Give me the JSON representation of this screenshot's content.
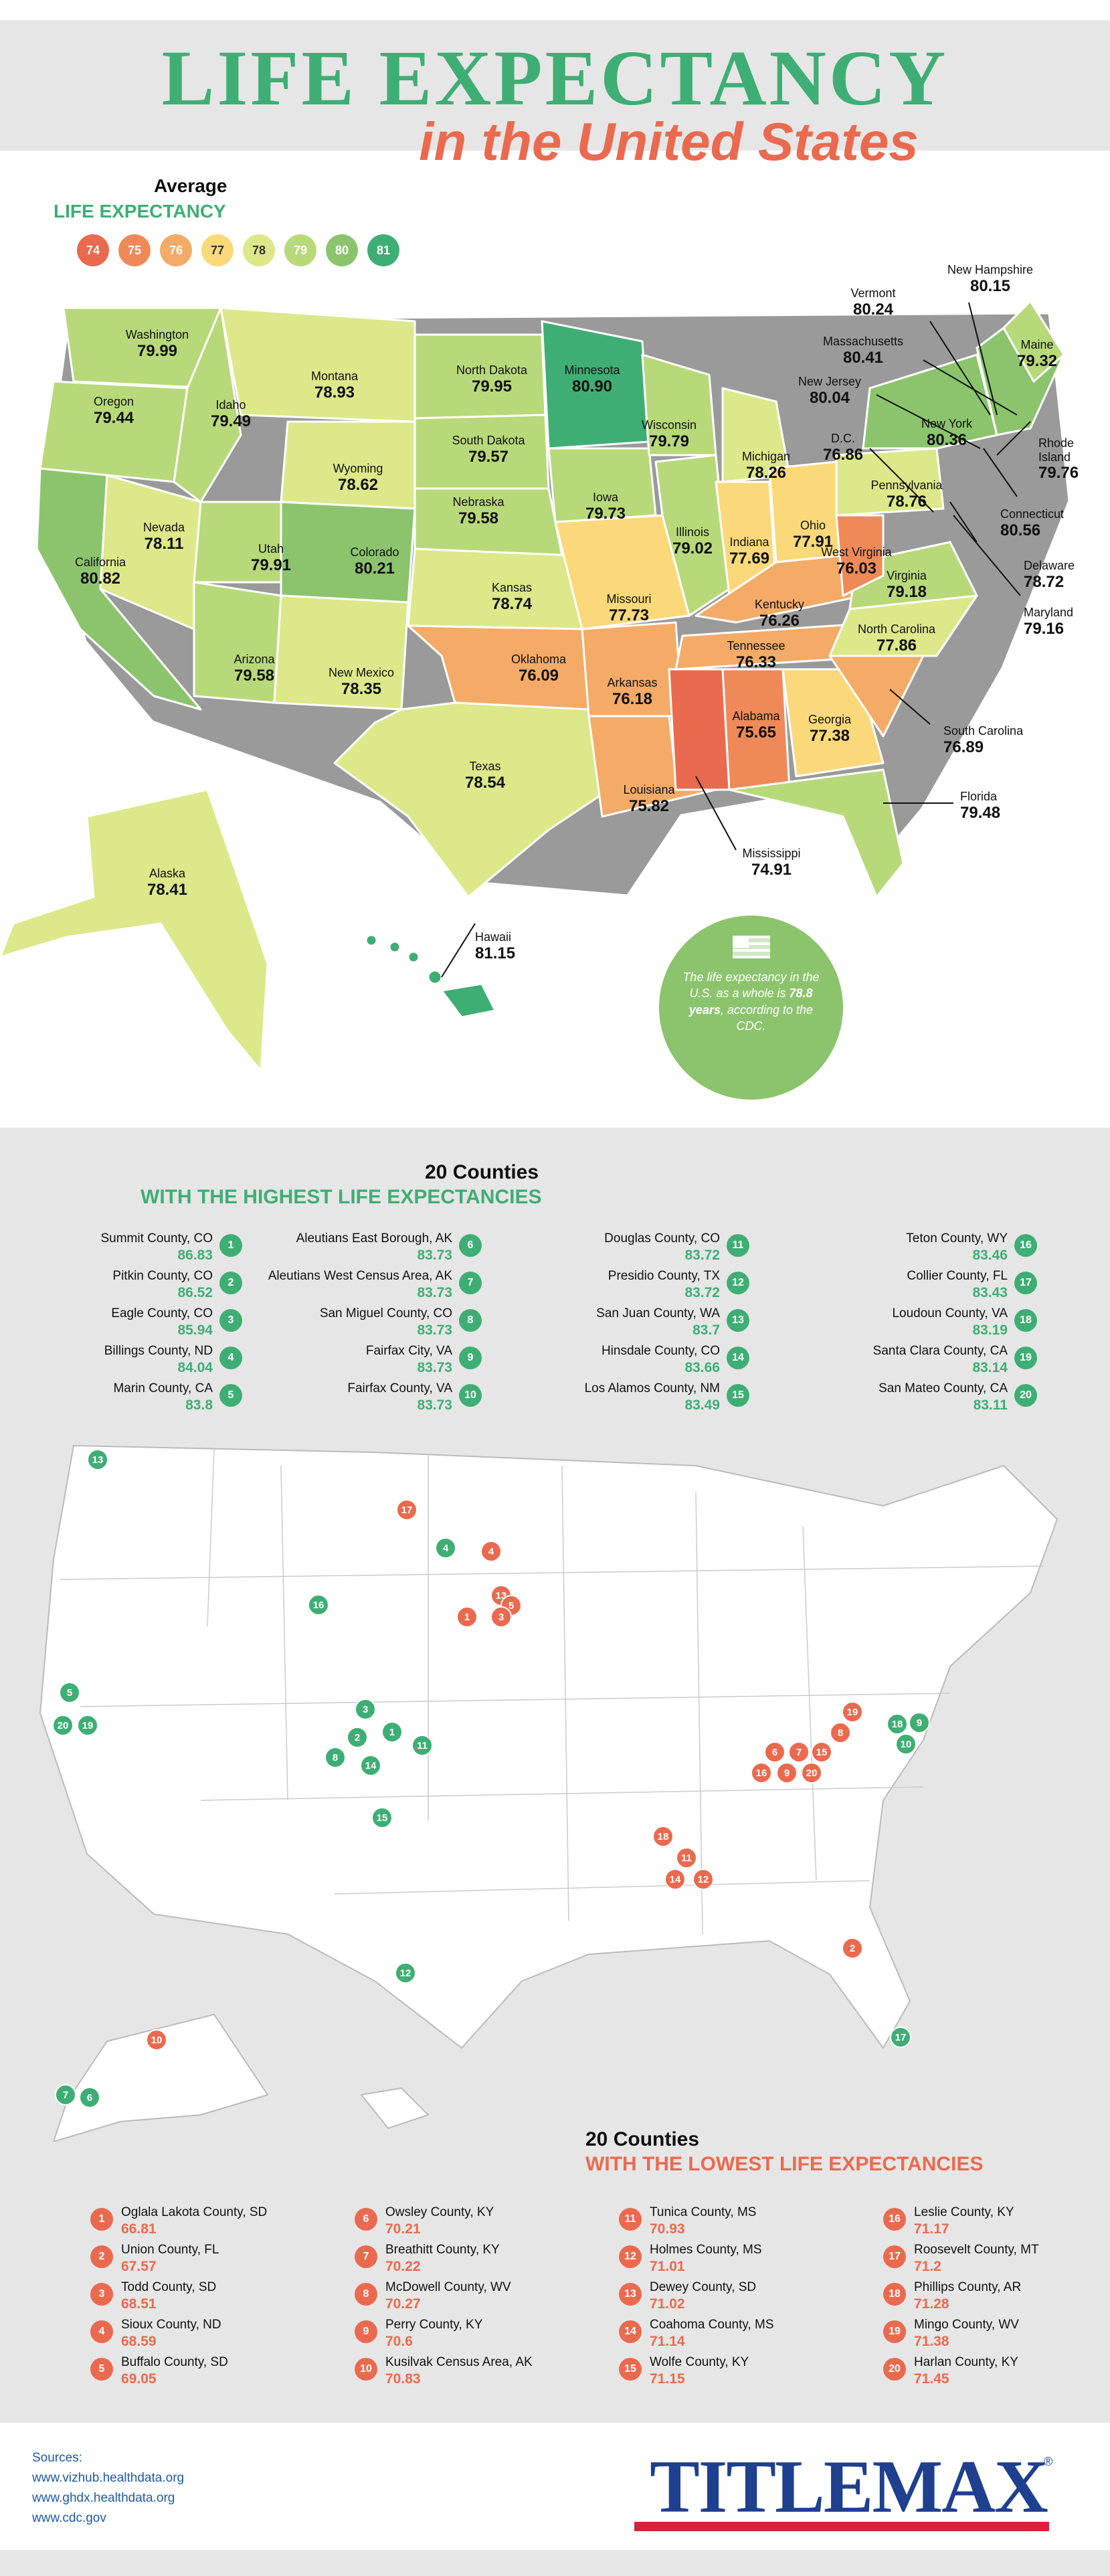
{
  "title": {
    "line1": "LIFE EXPECTANCY",
    "line2": "in the United States"
  },
  "legend": {
    "title_line1": "Average",
    "title_line2": "LIFE EXPECTANCY",
    "items": [
      {
        "label": "74",
        "color": "#ea6a4f"
      },
      {
        "label": "75",
        "color": "#ef8a58"
      },
      {
        "label": "76",
        "color": "#f4ab67"
      },
      {
        "label": "77",
        "color": "#fbd97a"
      },
      {
        "label": "78",
        "color": "#dde88a"
      },
      {
        "label": "79",
        "color": "#b8d97a"
      },
      {
        "label": "80",
        "color": "#8cc46e"
      },
      {
        "label": "81",
        "color": "#3fae74"
      }
    ]
  },
  "states": [
    {
      "name": "Washington",
      "value": "79.99"
    },
    {
      "name": "Oregon",
      "value": "79.44"
    },
    {
      "name": "California",
      "value": "80.82"
    },
    {
      "name": "Idaho",
      "value": "79.49"
    },
    {
      "name": "Nevada",
      "value": "78.11"
    },
    {
      "name": "Montana",
      "value": "78.93"
    },
    {
      "name": "Wyoming",
      "value": "78.62"
    },
    {
      "name": "Utah",
      "value": "79.91"
    },
    {
      "name": "Colorado",
      "value": "80.21"
    },
    {
      "name": "Arizona",
      "value": "79.58"
    },
    {
      "name": "New Mexico",
      "value": "78.35"
    },
    {
      "name": "North Dakota",
      "value": "79.95"
    },
    {
      "name": "South Dakota",
      "value": "79.57"
    },
    {
      "name": "Nebraska",
      "value": "79.58"
    },
    {
      "name": "Kansas",
      "value": "78.74"
    },
    {
      "name": "Oklahoma",
      "value": "76.09"
    },
    {
      "name": "Texas",
      "value": "78.54"
    },
    {
      "name": "Minnesota",
      "value": "80.90"
    },
    {
      "name": "Iowa",
      "value": "79.73"
    },
    {
      "name": "Missouri",
      "value": "77.73"
    },
    {
      "name": "Arkansas",
      "value": "76.18"
    },
    {
      "name": "Louisiana",
      "value": "75.82"
    },
    {
      "name": "Wisconsin",
      "value": "79.79"
    },
    {
      "name": "Illinois",
      "value": "79.02"
    },
    {
      "name": "Michigan",
      "value": "78.26"
    },
    {
      "name": "Indiana",
      "value": "77.69"
    },
    {
      "name": "Ohio",
      "value": "77.91"
    },
    {
      "name": "Kentucky",
      "value": "76.26"
    },
    {
      "name": "Tennessee",
      "value": "76.33"
    },
    {
      "name": "Mississippi",
      "value": "74.91"
    },
    {
      "name": "Alabama",
      "value": "75.65"
    },
    {
      "name": "Georgia",
      "value": "77.38"
    },
    {
      "name": "Florida",
      "value": "79.48"
    },
    {
      "name": "South Carolina",
      "value": "76.89"
    },
    {
      "name": "North Carolina",
      "value": "77.86"
    },
    {
      "name": "Virginia",
      "value": "79.18"
    },
    {
      "name": "West Virginia",
      "value": "76.03"
    },
    {
      "name": "Pennsylvania",
      "value": "78.76"
    },
    {
      "name": "New York",
      "value": "80.36"
    },
    {
      "name": "Vermont",
      "value": "80.24"
    },
    {
      "name": "New Hampshire",
      "value": "80.15"
    },
    {
      "name": "Maine",
      "value": "79.32"
    },
    {
      "name": "Massachusetts",
      "value": "80.41"
    },
    {
      "name": "Rhode Island",
      "value": "79.76"
    },
    {
      "name": "Connecticut",
      "value": "80.56"
    },
    {
      "name": "New Jersey",
      "value": "80.04"
    },
    {
      "name": "Delaware",
      "value": "78.72"
    },
    {
      "name": "Maryland",
      "value": "79.16"
    },
    {
      "name": "D.C.",
      "value": "76.86"
    },
    {
      "name": "Alaska",
      "value": "78.41"
    },
    {
      "name": "Hawaii",
      "value": "81.15"
    }
  ],
  "cdc_note": {
    "before": "The life expectancy in the U.S. as a whole is ",
    "highlight": "78.8 years",
    "after": ", according to the CDC."
  },
  "highest": {
    "title_line1": "20 Counties",
    "title_line2": "WITH THE HIGHEST LIFE EXPECTANCIES",
    "items": [
      {
        "rank": "1",
        "name": "Summit County, CO",
        "value": "86.83"
      },
      {
        "rank": "2",
        "name": "Pitkin County, CO",
        "value": "86.52"
      },
      {
        "rank": "3",
        "name": "Eagle County, CO",
        "value": "85.94"
      },
      {
        "rank": "4",
        "name": "Billings County, ND",
        "value": "84.04"
      },
      {
        "rank": "5",
        "name": "Marin County, CA",
        "value": "83.8"
      },
      {
        "rank": "6",
        "name": "Aleutians East Borough, AK",
        "value": "83.73"
      },
      {
        "rank": "7",
        "name": "Aleutians West Census Area, AK",
        "value": "83.73"
      },
      {
        "rank": "8",
        "name": "San Miguel County, CO",
        "value": "83.73"
      },
      {
        "rank": "9",
        "name": "Fairfax City, VA",
        "value": "83.73"
      },
      {
        "rank": "10",
        "name": "Fairfax County, VA",
        "value": "83.73"
      },
      {
        "rank": "11",
        "name": "Douglas County, CO",
        "value": "83.72"
      },
      {
        "rank": "12",
        "name": "Presidio County, TX",
        "value": "83.72"
      },
      {
        "rank": "13",
        "name": "San Juan County, WA",
        "value": "83.7"
      },
      {
        "rank": "14",
        "name": "Hinsdale County, CO",
        "value": "83.66"
      },
      {
        "rank": "15",
        "name": "Los Alamos County, NM",
        "value": "83.49"
      },
      {
        "rank": "16",
        "name": "Teton County, WY",
        "value": "83.46"
      },
      {
        "rank": "17",
        "name": "Collier County, FL",
        "value": "83.43"
      },
      {
        "rank": "18",
        "name": "Loudoun County, VA",
        "value": "83.19"
      },
      {
        "rank": "19",
        "name": "Santa Clara County, CA",
        "value": "83.14"
      },
      {
        "rank": "20",
        "name": "San Mateo County, CA",
        "value": "83.11"
      }
    ]
  },
  "lowest": {
    "title_line1": "20 Counties",
    "title_line2": "WITH THE LOWEST LIFE EXPECTANCIES",
    "items": [
      {
        "rank": "1",
        "name": "Oglala Lakota County, SD",
        "value": "66.81"
      },
      {
        "rank": "2",
        "name": "Union County, FL",
        "value": "67.57"
      },
      {
        "rank": "3",
        "name": "Todd County, SD",
        "value": "68.51"
      },
      {
        "rank": "4",
        "name": "Sioux County, ND",
        "value": "68.59"
      },
      {
        "rank": "5",
        "name": "Buffalo County, SD",
        "value": "69.05"
      },
      {
        "rank": "6",
        "name": "Owsley County, KY",
        "value": "70.21"
      },
      {
        "rank": "7",
        "name": "Breathitt County, KY",
        "value": "70.22"
      },
      {
        "rank": "8",
        "name": "McDowell County, WV",
        "value": "70.27"
      },
      {
        "rank": "9",
        "name": "Perry County, KY",
        "value": "70.6"
      },
      {
        "rank": "10",
        "name": "Kusilvak Census Area, AK",
        "value": "70.83"
      },
      {
        "rank": "11",
        "name": "Tunica County, MS",
        "value": "70.93"
      },
      {
        "rank": "12",
        "name": "Holmes County, MS",
        "value": "71.01"
      },
      {
        "rank": "13",
        "name": "Dewey County, SD",
        "value": "71.02"
      },
      {
        "rank": "14",
        "name": "Coahoma County, MS",
        "value": "71.14"
      },
      {
        "rank": "15",
        "name": "Wolfe County, KY",
        "value": "71.15"
      },
      {
        "rank": "16",
        "name": "Leslie County, KY",
        "value": "71.17"
      },
      {
        "rank": "17",
        "name": "Roosevelt County, MT",
        "value": "71.2"
      },
      {
        "rank": "18",
        "name": "Phillips County, AR",
        "value": "71.28"
      },
      {
        "rank": "19",
        "name": "Mingo County, WV",
        "value": "71.38"
      },
      {
        "rank": "20",
        "name": "Harlan County, KY",
        "value": "71.45"
      }
    ]
  },
  "county_markers": {
    "high": [
      "13",
      "4",
      "16",
      "5",
      "20",
      "19",
      "3",
      "2",
      "1",
      "11",
      "8",
      "14",
      "15",
      "12",
      "18",
      "9",
      "10",
      "17",
      "7",
      "6"
    ],
    "low": [
      "17",
      "4",
      "13",
      "5",
      "1",
      "3",
      "19",
      "8",
      "6",
      "7",
      "15",
      "16",
      "9",
      "20",
      "18",
      "11",
      "14",
      "12",
      "2",
      "10"
    ]
  },
  "sources": {
    "title": "Sources:",
    "items": [
      "www.vizhub.healthdata.org",
      "www.ghdx.healthdata.org",
      "www.cdc.gov"
    ]
  },
  "brand": {
    "name": "TITLEMAX",
    "reg": "®"
  }
}
